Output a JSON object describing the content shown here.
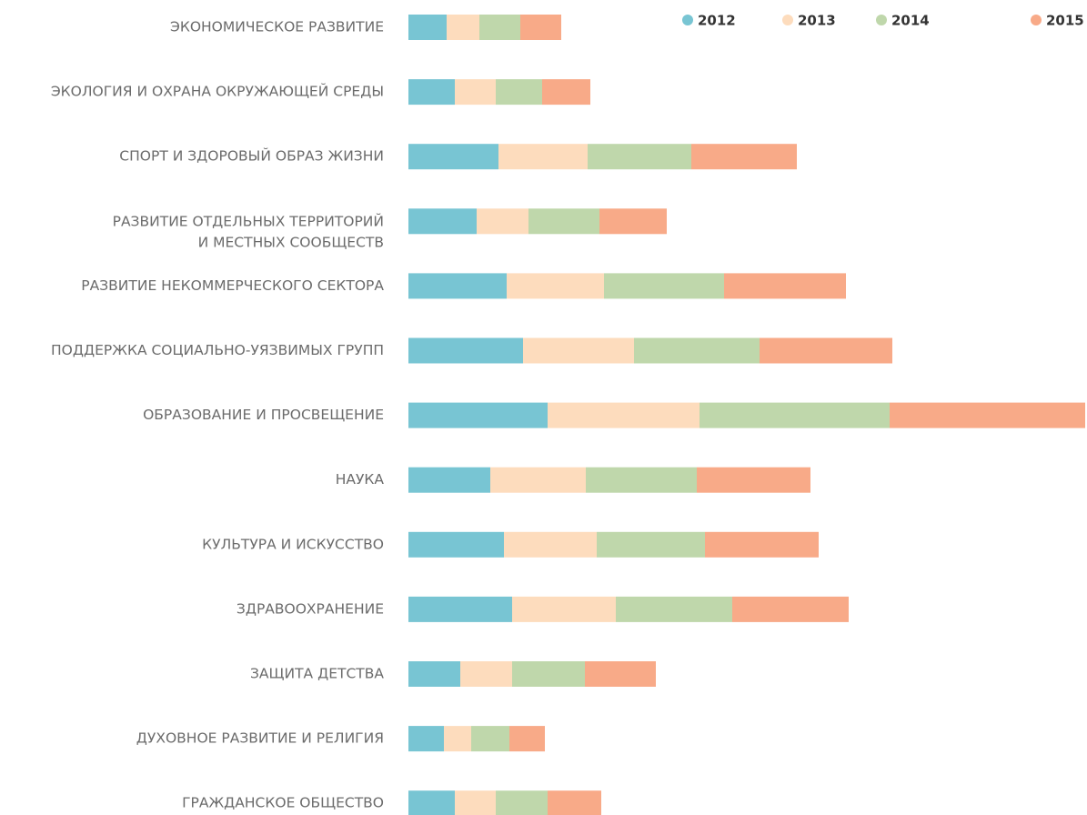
{
  "chart_data": {
    "type": "stacked-bar-horizontal",
    "categories": [
      "ЭКОНОМИЧЕСКОЕ РАЗВИТИЕ",
      "ЭКОЛОГИЯ И ОХРАНА ОКРУЖАЮЩЕЙ СРЕДЫ",
      "СПОРТ И ЗДОРОВЫЙ ОБРАЗ ЖИЗНИ",
      "РАЗВИТИЕ ОТДЕЛЬНЫХ ТЕРРИТОРИЙ\nИ МЕСТНЫХ СООБЩЕСТВ",
      "РАЗВИТИЕ НЕКОММЕРЧЕСКОГО СЕКТОРА",
      "ПОДДЕРЖКА СОЦИАЛЬНО-УЯЗВИМЫХ ГРУПП",
      "ОБРАЗОВАНИЕ И ПРОСВЕЩЕНИЕ",
      "НАУКА",
      "КУЛЬТУРА И ИСКУССТВО",
      "ЗДРАВООХРАНЕНИЕ",
      "ЗАЩИТА ДЕТСТВА",
      "ДУХОВНОЕ РАЗВИТИЕ И РЕЛИГИЯ",
      "ГРАЖДАНСКОЕ ОБЩЕСТВО"
    ],
    "series": [
      {
        "name": "2012",
        "color": "#78c5d3",
        "values": [
          42,
          51,
          99,
          75,
          108,
          126,
          153,
          90,
          105,
          114,
          57,
          39,
          51
        ]
      },
      {
        "name": "2013",
        "color": "#fddcbd",
        "values": [
          36,
          45,
          98,
          57,
          107,
          122,
          167,
          105,
          102,
          114,
          57,
          30,
          45
        ]
      },
      {
        "name": "2014",
        "color": "#bfd7ab",
        "values": [
          45,
          51,
          114,
          78,
          132,
          138,
          209,
          122,
          119,
          128,
          80,
          42,
          57
        ]
      },
      {
        "name": "2015",
        "color": "#f8aa88",
        "values": [
          45,
          53,
          116,
          74,
          134,
          146,
          215,
          125,
          125,
          128,
          78,
          39,
          59
        ]
      }
    ],
    "xlim": [
      0,
      744
    ],
    "legend": "top-right"
  }
}
